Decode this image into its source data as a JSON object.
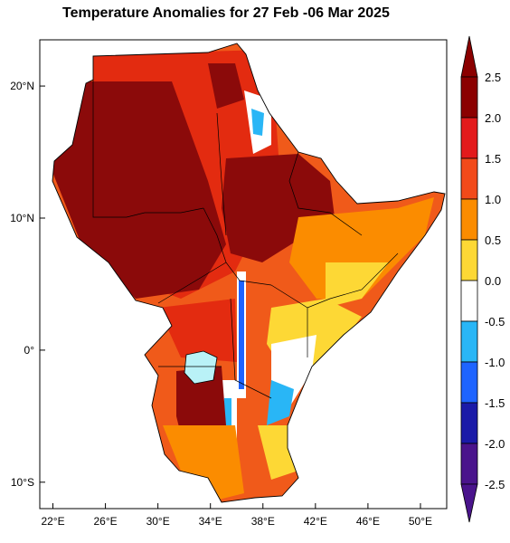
{
  "title": "Temperature Anomalies for 27 Feb -06 Mar 2025",
  "map": {
    "lon_range": [
      21,
      52
    ],
    "lat_range": [
      -12,
      23.5
    ],
    "lon_ticks": [
      {
        "value": 22,
        "label": "22°E"
      },
      {
        "value": 26,
        "label": "26°E"
      },
      {
        "value": 30,
        "label": "30°E"
      },
      {
        "value": 34,
        "label": "34°E"
      },
      {
        "value": 38,
        "label": "38°E"
      },
      {
        "value": 42,
        "label": "42°E"
      },
      {
        "value": 46,
        "label": "46°E"
      },
      {
        "value": 50,
        "label": "50°E"
      }
    ],
    "lat_ticks": [
      {
        "value": 20,
        "label": "20°N"
      },
      {
        "value": 10,
        "label": "10°N"
      },
      {
        "value": 0,
        "label": "0°"
      },
      {
        "value": -10,
        "label": "10°S"
      }
    ]
  },
  "colorbar": {
    "labels": [
      "2.5",
      "2.0",
      "1.5",
      "1.0",
      "0.5",
      "0.0",
      "-0.5",
      "-1.0",
      "-1.5",
      "-2.0",
      "-2.5"
    ],
    "colors": [
      "#8b0000",
      "#e31a1c",
      "#f24a1a",
      "#fb8c00",
      "#fdd835",
      "#ffffff",
      "#29b6f6",
      "#1e64ff",
      "#1a1aa8",
      "#4a148c"
    ]
  }
}
